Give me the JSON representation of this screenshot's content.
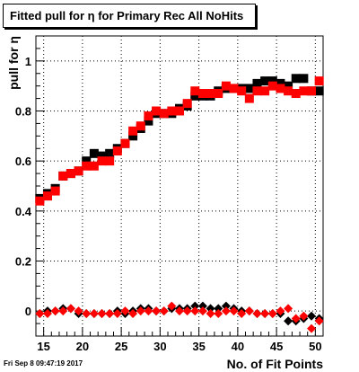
{
  "chart_data": {
    "type": "scatter",
    "title": "Fitted pull for  η for Primary Rec All NoHits",
    "xlabel": "No. of Fit Points",
    "ylabel": "pull for  η",
    "xlim": [
      14,
      51
    ],
    "ylim": [
      -0.1,
      1.1
    ],
    "xticks": [
      15,
      20,
      25,
      30,
      35,
      40,
      45,
      50
    ],
    "yticks": [
      0,
      0.2,
      0.4,
      0.6,
      0.8,
      1
    ],
    "grid": true,
    "series": [
      {
        "color": "#000000",
        "marker": "square",
        "x": [
          14.5,
          15.5,
          16.5,
          17.5,
          18.5,
          19.5,
          20.5,
          21.5,
          22.5,
          23.5,
          24.5,
          25.5,
          26.5,
          27.5,
          28.5,
          29.5,
          30.5,
          31.5,
          32.5,
          33.5,
          34.5,
          35.5,
          36.5,
          37.5,
          38.5,
          39.5,
          40.5,
          41.5,
          42.5,
          43.5,
          44.5,
          45.5,
          46.5,
          47.5,
          48.5,
          49.5,
          50.5
        ],
        "values": [
          0.45,
          0.47,
          0.49,
          0.54,
          0.55,
          0.56,
          0.6,
          0.63,
          0.62,
          0.63,
          0.65,
          0.67,
          0.7,
          0.73,
          0.76,
          0.79,
          0.79,
          0.79,
          0.81,
          0.82,
          0.86,
          0.86,
          0.86,
          0.88,
          0.89,
          0.89,
          0.89,
          0.89,
          0.91,
          0.92,
          0.92,
          0.91,
          0.9,
          0.93,
          0.93,
          0.88,
          0.88
        ]
      },
      {
        "color": "#ff0000",
        "marker": "square",
        "x": [
          14.5,
          15.5,
          16.5,
          17.5,
          18.5,
          19.5,
          20.5,
          21.5,
          22.5,
          23.5,
          24.5,
          25.5,
          26.5,
          27.5,
          28.5,
          29.5,
          30.5,
          31.5,
          32.5,
          33.5,
          34.5,
          35.5,
          36.5,
          37.5,
          38.5,
          39.5,
          40.5,
          41.5,
          42.5,
          43.5,
          44.5,
          45.5,
          46.5,
          47.5,
          48.5,
          49.5,
          50.5
        ],
        "values": [
          0.44,
          0.46,
          0.48,
          0.54,
          0.55,
          0.56,
          0.58,
          0.58,
          0.6,
          0.6,
          0.64,
          0.67,
          0.72,
          0.74,
          0.78,
          0.8,
          0.79,
          0.8,
          0.8,
          0.83,
          0.88,
          0.87,
          0.87,
          0.87,
          0.9,
          0.89,
          0.88,
          0.85,
          0.88,
          0.88,
          0.9,
          0.89,
          0.88,
          0.87,
          0.88,
          0.88,
          0.92
        ]
      },
      {
        "color": "#000000",
        "marker": "diamond",
        "x": [
          14.5,
          15.5,
          16.5,
          17.5,
          18.5,
          19.5,
          20.5,
          21.5,
          22.5,
          23.5,
          24.5,
          25.5,
          26.5,
          27.5,
          28.5,
          29.5,
          30.5,
          31.5,
          32.5,
          33.5,
          34.5,
          35.5,
          36.5,
          37.5,
          38.5,
          39.5,
          40.5,
          41.5,
          42.5,
          43.5,
          44.5,
          45.5,
          46.5,
          47.5,
          48.5,
          49.5,
          50.5
        ],
        "values": [
          -0.01,
          0.0,
          0.0,
          0.01,
          0.01,
          -0.01,
          -0.01,
          -0.01,
          -0.01,
          -0.01,
          0.0,
          -0.01,
          0.0,
          0.01,
          0.01,
          0.0,
          0.0,
          0.01,
          0.01,
          0.01,
          0.02,
          0.02,
          0.01,
          0.01,
          0.02,
          0.01,
          0.0,
          0.0,
          -0.01,
          -0.01,
          -0.01,
          -0.01,
          -0.04,
          -0.04,
          -0.03,
          -0.02,
          -0.03
        ]
      },
      {
        "color": "#ff0000",
        "marker": "diamond",
        "x": [
          14.5,
          15.5,
          16.5,
          17.5,
          18.5,
          19.5,
          20.5,
          21.5,
          22.5,
          23.5,
          24.5,
          25.5,
          26.5,
          27.5,
          28.5,
          29.5,
          30.5,
          31.5,
          32.5,
          33.5,
          34.5,
          35.5,
          36.5,
          37.5,
          38.5,
          39.5,
          40.5,
          41.5,
          42.5,
          43.5,
          44.5,
          45.5,
          46.5,
          47.5,
          48.5,
          49.5,
          50.5
        ],
        "values": [
          -0.01,
          -0.01,
          0.0,
          0.0,
          0.01,
          0.0,
          -0.01,
          -0.01,
          -0.01,
          -0.01,
          -0.01,
          0.0,
          -0.01,
          0.0,
          0.0,
          0.0,
          0.0,
          0.02,
          0.0,
          0.0,
          0.0,
          0.0,
          -0.01,
          -0.01,
          0.0,
          0.0,
          -0.01,
          0.0,
          -0.01,
          -0.01,
          -0.01,
          0.0,
          0.01,
          -0.03,
          -0.02,
          -0.07,
          -0.04
        ]
      }
    ]
  },
  "footer": {
    "timestamp": "Fri Sep  8 09:47:19 2017"
  }
}
